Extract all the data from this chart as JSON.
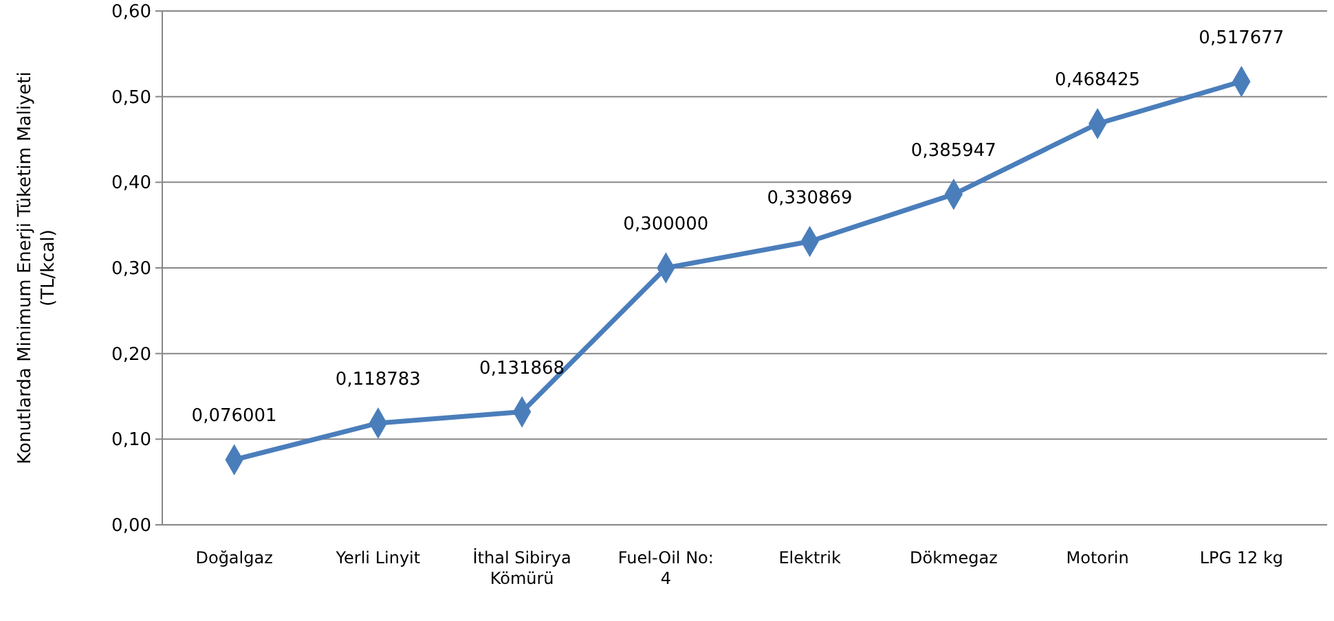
{
  "chart_data": {
    "type": "line",
    "ylabel": "Konutlarda Minimum Enerji Tüketim Maliyeti\n(TL/kcal)",
    "categories": [
      "Doğalgaz",
      "Yerli Linyit",
      "İthal Sibirya Kömürü",
      "Fuel-Oil No: 4",
      "Elektrik",
      "Dökmegaz",
      "Motorin",
      "LPG 12 kg"
    ],
    "series": [
      {
        "color": "#4a7ebb",
        "values": [
          0.076001,
          0.118783,
          0.131868,
          0.3,
          0.330869,
          0.385947,
          0.468425,
          0.517677
        ],
        "value_labels": [
          "0,076001",
          "0,118783",
          "0,131868",
          "0,300000",
          "0,330869",
          "0,385947",
          "0,468425",
          "0,517677"
        ]
      }
    ],
    "ylim": [
      0,
      0.6
    ],
    "yticks": [
      {
        "value": 0,
        "label": "0,00"
      },
      {
        "value": 0.1,
        "label": "0,10"
      },
      {
        "value": 0.2,
        "label": "0,20"
      },
      {
        "value": 0.3,
        "label": "0,30"
      },
      {
        "value": 0.4,
        "label": "0,40"
      },
      {
        "value": 0.5,
        "label": "0,50"
      },
      {
        "value": 0.6,
        "label": "0,60"
      }
    ],
    "grid": "y",
    "marker": "diamond",
    "line_style": "solid"
  }
}
